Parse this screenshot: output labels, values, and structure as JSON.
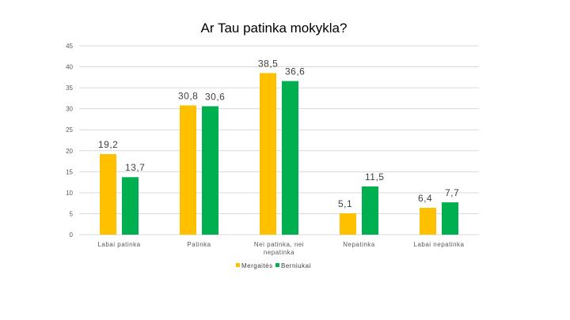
{
  "chart_data": {
    "type": "bar",
    "title": "Ar Tau patinka mokykla?",
    "xlabel": "",
    "ylabel": "",
    "categories": [
      "Labai patinka",
      "Patinka",
      "Nei patinka, nei nepatinka",
      "Nepatinka",
      "Labai nepatinka"
    ],
    "series": [
      {
        "name": "Mergaitės",
        "values": [
          19.2,
          30.8,
          38.5,
          5.1,
          6.4
        ],
        "labels": [
          "19,2",
          "30,8",
          "38,5",
          "5,1",
          "6,4"
        ],
        "color": "#FFC000"
      },
      {
        "name": "Berniukai",
        "values": [
          13.7,
          30.6,
          36.6,
          11.5,
          7.7
        ],
        "labels": [
          "13,7",
          "30,6",
          "36,6",
          "11,5",
          "7,7"
        ],
        "color": "#00B050"
      }
    ],
    "ylim": [
      0,
      45
    ],
    "yticks": [
      "0",
      "5",
      "10",
      "15",
      "20",
      "25",
      "30",
      "35",
      "40",
      "45"
    ],
    "grid": true,
    "legend": "bottom",
    "colors": {
      "gridline": "#D9D9D9",
      "axis": "#D9D9D9",
      "title": "#000000"
    }
  }
}
